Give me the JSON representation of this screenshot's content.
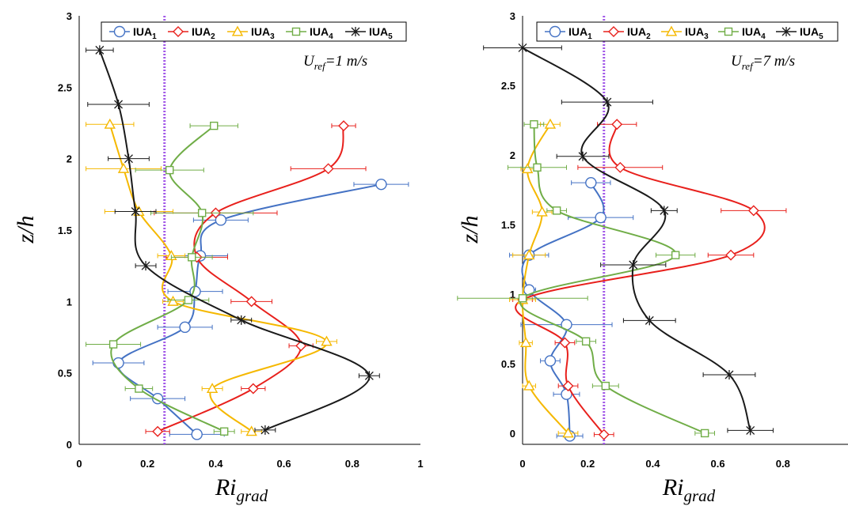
{
  "chart_data": [
    {
      "type": "line",
      "xlabel": "Ri",
      "xlabel_sub": "grad",
      "ylabel": "z/h",
      "xlim": [
        0,
        1
      ],
      "ylim": [
        0,
        3
      ],
      "xticks": [
        0,
        0.2,
        0.4,
        0.6,
        0.8,
        1
      ],
      "yticks": [
        0,
        0.5,
        1,
        1.5,
        2,
        2.5,
        3
      ],
      "xtick_labels": [
        "0",
        "0.2",
        "0.4",
        "0.6",
        "0.8",
        "1"
      ],
      "ytick_labels": [
        "0",
        "0.5",
        "1",
        "1.5",
        "2",
        "2.5",
        "3"
      ],
      "annotation": {
        "lead": "U",
        "sub": "ref",
        "trail": "=1 m/s"
      },
      "reference_line": {
        "x": 0.25,
        "color": "#a259e8",
        "style": "dotted"
      },
      "legend_position": "top",
      "series": [
        {
          "name": "IUA",
          "sub": "1",
          "color": "#4472c4",
          "marker": "circle",
          "x": [
            0.345,
            0.23,
            0.115,
            0.31,
            0.34,
            0.355,
            0.415,
            0.885
          ],
          "y": [
            0.07,
            0.32,
            0.57,
            0.82,
            1.07,
            1.32,
            1.57,
            1.82
          ],
          "xerr": [
            0.08,
            0.08,
            0.075,
            0.08,
            0.08,
            0.08,
            0.08,
            0.08
          ]
        },
        {
          "name": "IUA",
          "sub": "2",
          "color": "#e8201c",
          "marker": "diamond",
          "x": [
            0.23,
            0.51,
            0.65,
            0.505,
            0.345,
            0.4,
            0.73,
            0.775
          ],
          "y": [
            0.09,
            0.39,
            0.69,
            1.0,
            1.31,
            1.62,
            1.93,
            2.23
          ],
          "xerr": [
            0.035,
            0.035,
            0.035,
            0.06,
            0.09,
            0.18,
            0.11,
            0.035
          ]
        },
        {
          "name": "IUA",
          "sub": "3",
          "color": "#f5b800",
          "marker": "triangle",
          "x": [
            0.505,
            0.39,
            0.725,
            0.275,
            0.27,
            0.175,
            0.13,
            0.09
          ],
          "y": [
            0.09,
            0.39,
            0.72,
            1.0,
            1.32,
            1.63,
            1.93,
            2.24
          ],
          "xerr": [
            0.03,
            0.03,
            0.03,
            0.03,
            0.04,
            0.1,
            0.11,
            0.07
          ]
        },
        {
          "name": "IUA",
          "sub": "4",
          "color": "#70ad47",
          "marker": "square",
          "x": [
            0.425,
            0.175,
            0.1,
            0.32,
            0.33,
            0.36,
            0.265,
            0.395
          ],
          "y": [
            0.09,
            0.39,
            0.7,
            1.01,
            1.31,
            1.62,
            1.92,
            2.23
          ],
          "xerr": [
            0.03,
            0.04,
            0.08,
            0.06,
            0.06,
            0.15,
            0.1,
            0.07
          ]
        },
        {
          "name": "IUA",
          "sub": "5",
          "color": "#1a1a1a",
          "marker": "star",
          "x": [
            0.545,
            0.85,
            0.475,
            0.195,
            0.165,
            0.145,
            0.115,
            0.06
          ],
          "y": [
            0.1,
            0.48,
            0.87,
            1.25,
            1.63,
            2.0,
            2.38,
            2.76
          ],
          "xerr": [
            0.03,
            0.03,
            0.03,
            0.03,
            0.06,
            0.06,
            0.09,
            0.04
          ]
        }
      ]
    },
    {
      "type": "line",
      "xlabel": "Ri",
      "xlabel_sub": "grad",
      "ylabel": "z/h",
      "xlim": [
        0,
        1
      ],
      "ylim": [
        -0.08,
        3
      ],
      "xticks": [
        0,
        0.2,
        0.4,
        0.6,
        0.8
      ],
      "yticks": [
        0,
        0.5,
        1,
        1.5,
        2,
        2.5,
        3
      ],
      "xtick_labels": [
        "0",
        "0.2",
        "0.4",
        "0.6",
        "0.8"
      ],
      "ytick_labels": [
        "0",
        "0.5",
        "1",
        "1.5",
        "2",
        "2.5",
        "3"
      ],
      "annotation": {
        "lead": "U",
        "sub": "ref",
        "trail": "=7 m/s"
      },
      "reference_line": {
        "x": 0.25,
        "color": "#a259e8",
        "style": "dotted"
      },
      "legend_position": "top",
      "series": [
        {
          "name": "IUA",
          "sub": "1",
          "color": "#4472c4",
          "marker": "circle",
          "x": [
            0.145,
            0.135,
            0.085,
            0.135,
            0.02,
            0.02,
            0.24,
            0.21
          ],
          "y": [
            -0.02,
            0.28,
            0.52,
            0.78,
            1.03,
            1.28,
            1.55,
            1.8
          ],
          "xerr": [
            0.04,
            0.04,
            0.03,
            0.14,
            0.02,
            0.06,
            0.1,
            0.06
          ]
        },
        {
          "name": "IUA",
          "sub": "2",
          "color": "#e8201c",
          "marker": "diamond",
          "x": [
            0.25,
            0.14,
            0.13,
            0.0,
            0.64,
            0.71,
            0.3,
            0.29
          ],
          "y": [
            -0.01,
            0.34,
            0.65,
            0.96,
            1.28,
            1.6,
            1.91,
            2.22
          ],
          "xerr": [
            0.03,
            0.03,
            0.03,
            0.03,
            0.07,
            0.1,
            0.13,
            0.06
          ]
        },
        {
          "name": "IUA",
          "sub": "3",
          "color": "#f5b800",
          "marker": "triangle",
          "x": [
            0.14,
            0.02,
            0.01,
            0.0,
            0.02,
            0.06,
            0.015,
            0.085
          ],
          "y": [
            0.0,
            0.34,
            0.65,
            0.96,
            1.28,
            1.59,
            1.9,
            2.22
          ],
          "xerr": [
            0.03,
            0.02,
            0.02,
            0.04,
            0.05,
            0.03,
            0.02,
            0.03
          ]
        },
        {
          "name": "IUA",
          "sub": "4",
          "color": "#70ad47",
          "marker": "square",
          "x": [
            0.56,
            0.255,
            0.195,
            0.0,
            0.47,
            0.105,
            0.045,
            0.035
          ],
          "y": [
            0.0,
            0.34,
            0.66,
            0.97,
            1.28,
            1.6,
            1.91,
            2.22
          ],
          "xerr": [
            0.03,
            0.04,
            0.03,
            0.2,
            0.06,
            0.03,
            0.09,
            0.03
          ]
        },
        {
          "name": "IUA",
          "sub": "5",
          "color": "#1a1a1a",
          "marker": "star",
          "x": [
            0.7,
            0.635,
            0.39,
            0.34,
            0.435,
            0.185,
            0.26,
            0.0
          ],
          "y": [
            0.02,
            0.42,
            0.81,
            1.21,
            1.6,
            1.99,
            2.38,
            2.77
          ],
          "xerr": [
            0.07,
            0.08,
            0.08,
            0.1,
            0.04,
            0.08,
            0.14,
            0.12
          ]
        }
      ]
    }
  ]
}
